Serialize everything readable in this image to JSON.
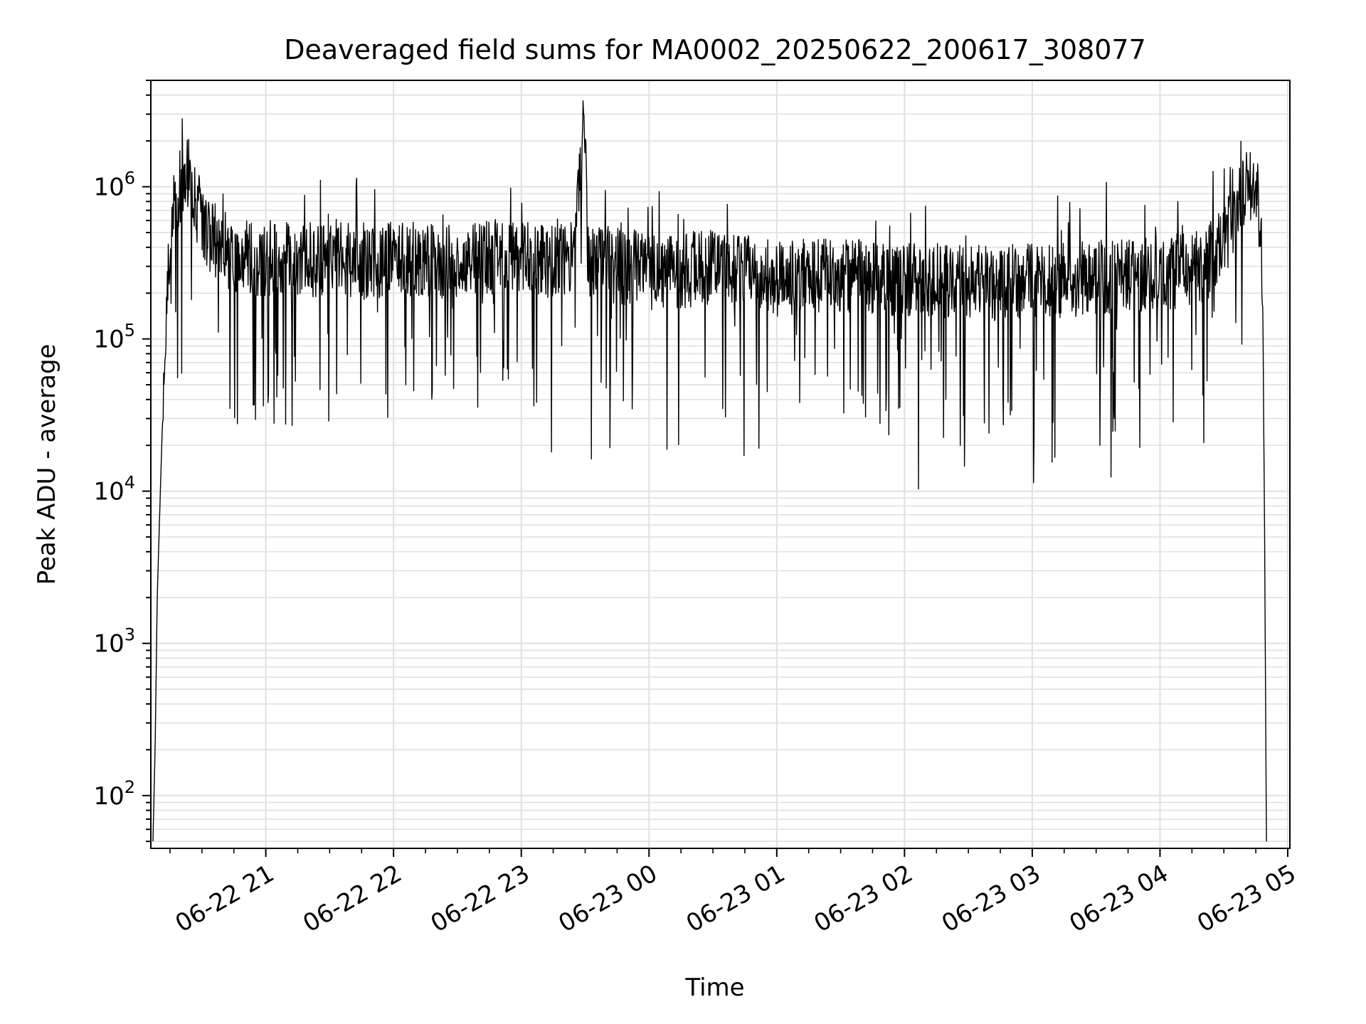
{
  "chart_data": {
    "type": "line",
    "title": "Deaveraged field sums for MA0002_20250622_200617_308077",
    "xlabel": "Time",
    "ylabel": "Peak ADU - average",
    "yscale": "log",
    "ylim": [
      45,
      5000000
    ],
    "xlim": [
      "2025-06-22 20:06",
      "2025-06-23 05:01"
    ],
    "grid": true,
    "line_color": "#000000",
    "grid_color": "#e0e0e0",
    "x_ticks": [
      {
        "label": "06-22 21",
        "value": "2025-06-22 21:00"
      },
      {
        "label": "06-22 22",
        "value": "2025-06-22 22:00"
      },
      {
        "label": "06-22 23",
        "value": "2025-06-22 23:00"
      },
      {
        "label": "06-23 00",
        "value": "2025-06-23 00:00"
      },
      {
        "label": "06-23 01",
        "value": "2025-06-23 01:00"
      },
      {
        "label": "06-23 02",
        "value": "2025-06-23 02:00"
      },
      {
        "label": "06-23 03",
        "value": "2025-06-23 03:00"
      },
      {
        "label": "06-23 04",
        "value": "2025-06-23 04:00"
      },
      {
        "label": "06-23 05",
        "value": "2025-06-23 05:00"
      }
    ],
    "y_ticks": [
      {
        "base": "10",
        "exp": "2",
        "value": 100
      },
      {
        "base": "10",
        "exp": "3",
        "value": 1000
      },
      {
        "base": "10",
        "exp": "4",
        "value": 10000
      },
      {
        "base": "10",
        "exp": "5",
        "value": 100000
      },
      {
        "base": "10",
        "exp": "6",
        "value": 1000000
      }
    ],
    "series": [
      {
        "x": [
          "2025-06-22 20:07",
          "2025-06-22 20:08",
          "2025-06-22 20:09",
          "2025-06-22 20:10",
          "2025-06-22 20:12",
          "2025-06-22 20:15",
          "2025-06-22 20:18",
          "2025-06-22 20:20",
          "2025-06-22 20:24",
          "2025-06-22 20:27",
          "2025-06-22 20:30",
          "2025-06-22 20:33",
          "2025-06-22 20:36",
          "2025-06-22 20:40",
          "2025-06-22 20:45",
          "2025-06-22 20:50",
          "2025-06-22 20:55",
          "2025-06-22 21:00",
          "2025-06-22 21:05",
          "2025-06-22 21:10",
          "2025-06-22 21:20",
          "2025-06-22 21:30",
          "2025-06-22 21:45",
          "2025-06-22 22:00",
          "2025-06-22 22:15",
          "2025-06-22 22:30",
          "2025-06-22 22:45",
          "2025-06-22 23:00",
          "2025-06-22 23:15",
          "2025-06-22 23:25",
          "2025-06-22 23:29",
          "2025-06-22 23:30",
          "2025-06-22 23:31",
          "2025-06-22 23:35",
          "2025-06-22 23:45",
          "2025-06-23 00:00",
          "2025-06-23 00:15",
          "2025-06-23 00:30",
          "2025-06-23 00:45",
          "2025-06-23 01:00",
          "2025-06-23 01:15",
          "2025-06-23 01:30",
          "2025-06-23 01:45",
          "2025-06-23 02:00",
          "2025-06-23 02:15",
          "2025-06-23 02:30",
          "2025-06-23 02:45",
          "2025-06-23 03:00",
          "2025-06-23 03:15",
          "2025-06-23 03:30",
          "2025-06-23 03:45",
          "2025-06-23 04:00",
          "2025-06-23 04:10",
          "2025-06-23 04:20",
          "2025-06-23 04:25",
          "2025-06-23 04:30",
          "2025-06-23 04:35",
          "2025-06-23 04:38",
          "2025-06-23 04:41",
          "2025-06-23 04:44",
          "2025-06-23 04:46",
          "2025-06-23 04:48",
          "2025-06-23 04:49",
          "2025-06-23 04:50"
        ],
        "y": [
          50,
          200,
          2000,
          6000,
          50000,
          500000,
          900000,
          1000000,
          1200000,
          800000,
          600000,
          500000,
          450000,
          400000,
          350000,
          380000,
          320000,
          330000,
          360000,
          340000,
          330000,
          350000,
          320000,
          340000,
          330000,
          320000,
          350000,
          330000,
          320000,
          340000,
          2500000,
          2800000,
          330000,
          320000,
          300000,
          290000,
          280000,
          300000,
          270000,
          250000,
          260000,
          270000,
          255000,
          250000,
          240000,
          245000,
          230000,
          250000,
          245000,
          250000,
          255000,
          270000,
          280000,
          300000,
          350000,
          450000,
          600000,
          800000,
          1000000,
          1000000,
          800000,
          300000,
          10000,
          50
        ]
      }
    ]
  }
}
